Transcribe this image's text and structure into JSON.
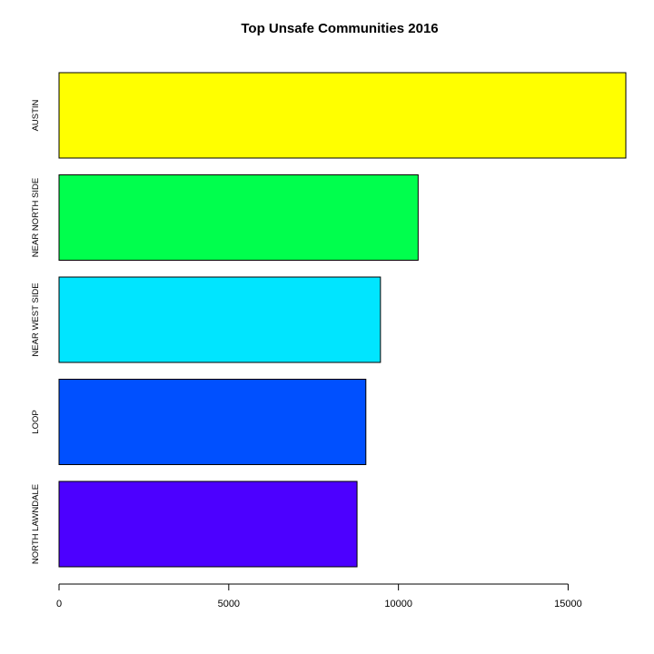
{
  "chart_data": {
    "type": "bar",
    "orientation": "horizontal",
    "title": "Top Unsafe Communities 2016",
    "xlabel": "",
    "ylabel": "",
    "categories": [
      "AUSTIN",
      "NEAR NORTH SIDE",
      "NEAR WEST SIDE",
      "LOOP",
      "NORTH LAWNDALE"
    ],
    "values": [
      16700,
      10580,
      9470,
      9040,
      8780
    ],
    "colors": [
      "#FFFF00",
      "#00FF4D",
      "#00E5FF",
      "#0050FF",
      "#4C00FF"
    ],
    "xlim": [
      0,
      16700
    ],
    "xticks": [
      0,
      5000,
      10000,
      15000
    ],
    "grid": false,
    "legend": "none"
  }
}
